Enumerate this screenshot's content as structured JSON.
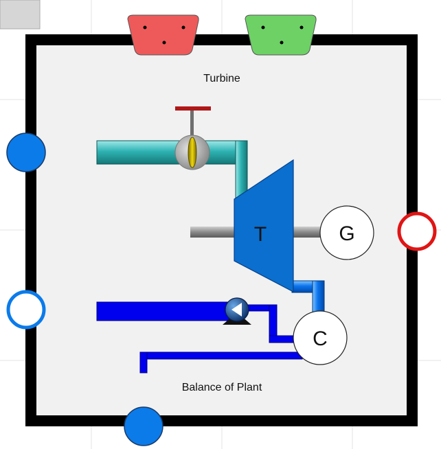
{
  "diagram": {
    "title": "Turbine",
    "footer": "Balance of Plant",
    "turbine_symbol": "T",
    "generator_symbol": "G",
    "condenser_symbol": "C"
  },
  "colors": {
    "frame": "#000000",
    "panel": "#f1f1f2",
    "grid": "#e3e3e3",
    "steam_pipe": "#2fb3b3",
    "exhaust_pipe": "#0b74ee",
    "feed_pipe": "#0000ee",
    "turbine": "#0a6fcf",
    "shaft": "#8a8a8a",
    "valve_handle": "#b01717",
    "port_blue": "#0b7bea",
    "port_red": "#e01515",
    "connector_red": "#ee5a5a",
    "connector_green": "#6ed166"
  },
  "icons": [
    "valve-icon",
    "pump-icon",
    "turbine-icon",
    "generator-icon",
    "condenser-icon"
  ]
}
